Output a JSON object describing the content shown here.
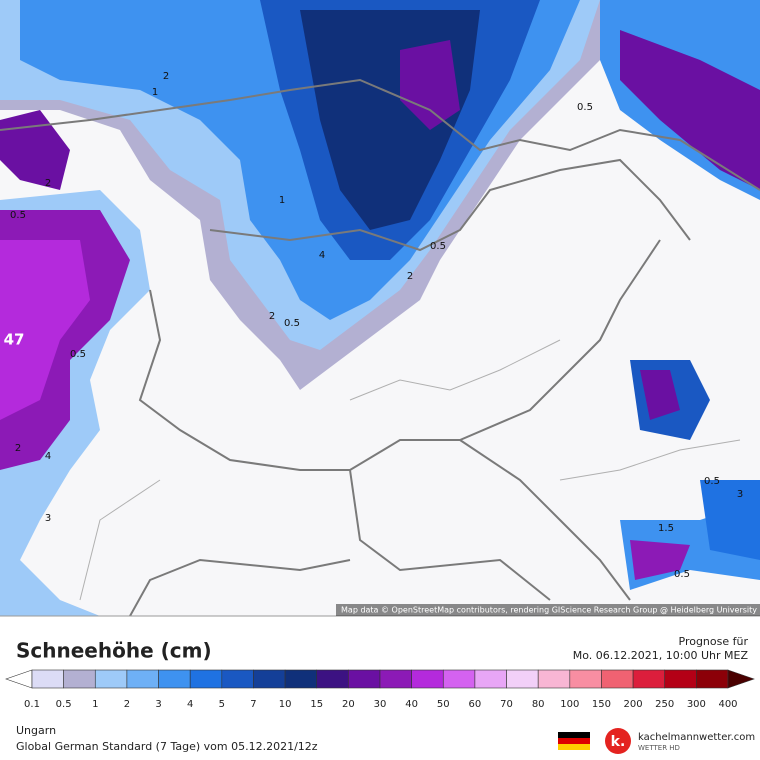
{
  "map": {
    "attribution": "Map data © OpenStreetMap contributors, rendering GIScience Research Group @ Heidelberg University",
    "labels": [
      47,
      0.5,
      2,
      1,
      2,
      0.5,
      4,
      2,
      0.5,
      0.5,
      0.5,
      2,
      1.5,
      0.5,
      3,
      2,
      4,
      1,
      0.5,
      3
    ]
  },
  "legend": {
    "title": "Schneehöhe (cm)",
    "ticks": [
      0.1,
      0.5,
      1,
      2,
      3,
      4,
      5,
      7,
      10,
      15,
      20,
      30,
      40,
      50,
      60,
      70,
      80,
      100,
      150,
      200,
      250,
      300,
      400
    ],
    "colors": [
      "#dcdcf6",
      "#b3b0d2",
      "#9ecaf8",
      "#6eb0f6",
      "#3e92f0",
      "#1f72e2",
      "#1a58c2",
      "#143f98",
      "#10307a",
      "#3c1282",
      "#6a10a2",
      "#8c1ab6",
      "#b42adc",
      "#d462f0",
      "#e8a6f6",
      "#f2d0f8",
      "#f8b6d4",
      "#f88ea2",
      "#f06272",
      "#dc1e3c",
      "#b40016",
      "#8c0008"
    ]
  },
  "forecast": {
    "label": "Prognose für",
    "time": "Mo. 06.12.2021, 10:00 Uhr MEZ"
  },
  "footer": {
    "region": "Ungarn",
    "model": "Global German Standard (7 Tage) vom 05.12.2021/12z",
    "brand": "kachelmannwetter.com",
    "brand_sub": "WETTER HD"
  }
}
